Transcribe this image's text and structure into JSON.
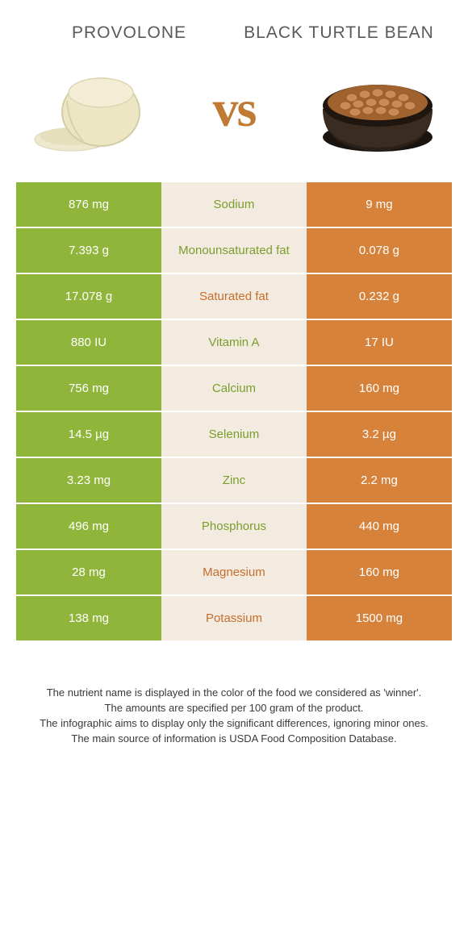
{
  "colors": {
    "green": "#90b53b",
    "orange": "#d6823a",
    "midBg": "#f4ebe0",
    "textGreen": "#7a9e2e",
    "textOrange": "#c46f2e",
    "headerText": "#5a5a5a",
    "footerText": "#3a3a3a",
    "white": "#ffffff"
  },
  "header": {
    "left": "Provolone",
    "right": "Black turtle bean"
  },
  "vs": "vs",
  "rows": [
    {
      "label": "Sodium",
      "left": "876 mg",
      "right": "9 mg",
      "winner": "left"
    },
    {
      "label": "Monounsaturated fat",
      "left": "7.393 g",
      "right": "0.078 g",
      "winner": "left"
    },
    {
      "label": "Saturated fat",
      "left": "17.078 g",
      "right": "0.232 g",
      "winner": "right"
    },
    {
      "label": "Vitamin A",
      "left": "880 IU",
      "right": "17 IU",
      "winner": "left"
    },
    {
      "label": "Calcium",
      "left": "756 mg",
      "right": "160 mg",
      "winner": "left"
    },
    {
      "label": "Selenium",
      "left": "14.5 µg",
      "right": "3.2 µg",
      "winner": "left"
    },
    {
      "label": "Zinc",
      "left": "3.23 mg",
      "right": "2.2 mg",
      "winner": "left"
    },
    {
      "label": "Phosphorus",
      "left": "496 mg",
      "right": "440 mg",
      "winner": "left"
    },
    {
      "label": "Magnesium",
      "left": "28 mg",
      "right": "160 mg",
      "winner": "right"
    },
    {
      "label": "Potassium",
      "left": "138 mg",
      "right": "1500 mg",
      "winner": "right"
    }
  ],
  "footer": [
    "The nutrient name is displayed in the color of the food we considered as 'winner'.",
    "The amounts are specified per 100 gram of the product.",
    "The infographic aims to display only the significant differences, ignoring minor ones.",
    "The main source of information is USDA Food Composition Database."
  ]
}
